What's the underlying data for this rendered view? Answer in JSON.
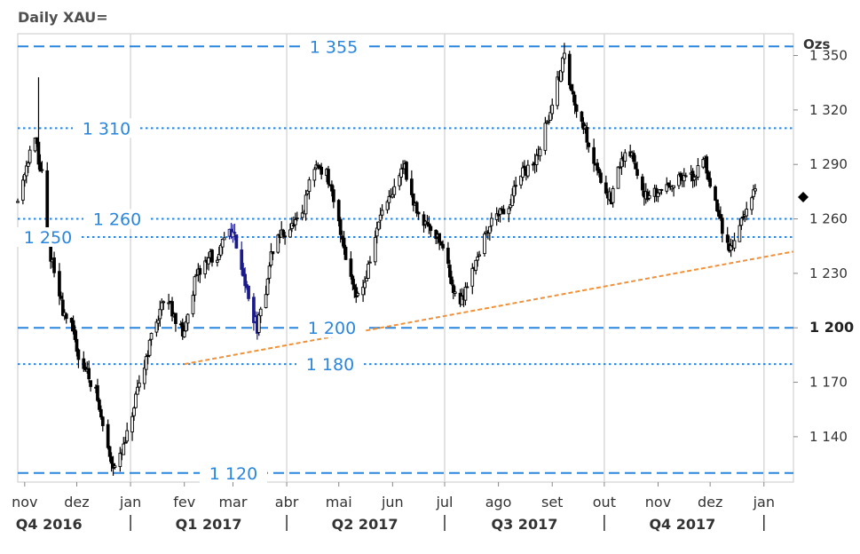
{
  "chart_data": {
    "type": "candlestick",
    "title": "Daily XAU=",
    "y_unit": "Ozs",
    "ylim": [
      1115,
      1362
    ],
    "y_ticks": [
      {
        "value": 1350,
        "label": "1 350"
      },
      {
        "value": 1320,
        "label": "1 320"
      },
      {
        "value": 1290,
        "label": "1 290"
      },
      {
        "value": 1260,
        "label": "1 260"
      },
      {
        "value": 1230,
        "label": "1 230"
      },
      {
        "value": 1200,
        "label": "1 200",
        "bold": true
      },
      {
        "value": 1170,
        "label": "1 170"
      },
      {
        "value": 1140,
        "label": "1 140"
      }
    ],
    "current_marker": {
      "value": 1272,
      "color": "#000000"
    },
    "x_range": [
      "2016-10-28",
      "2018-01-18"
    ],
    "x_months": [
      {
        "label": "nov",
        "date": "2016-11-01"
      },
      {
        "label": "dez",
        "date": "2016-12-01"
      },
      {
        "label": "jan",
        "date": "2017-01-01"
      },
      {
        "label": "fev",
        "date": "2017-02-01"
      },
      {
        "label": "mar",
        "date": "2017-03-01"
      },
      {
        "label": "abr",
        "date": "2017-04-01"
      },
      {
        "label": "mai",
        "date": "2017-05-01"
      },
      {
        "label": "jun",
        "date": "2017-06-01"
      },
      {
        "label": "jul",
        "date": "2017-07-01"
      },
      {
        "label": "ago",
        "date": "2017-08-01"
      },
      {
        "label": "set",
        "date": "2017-09-01"
      },
      {
        "label": "out",
        "date": "2017-10-01"
      },
      {
        "label": "nov",
        "date": "2017-11-01"
      },
      {
        "label": "dez",
        "date": "2017-12-01"
      },
      {
        "label": "jan",
        "date": "2018-01-01"
      }
    ],
    "x_quarters": [
      {
        "label": "Q4 2016",
        "center": "2016-11-15"
      },
      {
        "label": "Q1 2017",
        "center": "2017-02-15"
      },
      {
        "label": "Q2 2017",
        "center": "2017-05-16"
      },
      {
        "label": "Q3 2017",
        "center": "2017-08-16"
      },
      {
        "label": "Q4 2017",
        "center": "2017-11-15"
      }
    ],
    "quarter_separators": [
      "2017-01-01",
      "2017-04-01",
      "2017-07-01",
      "2017-10-01",
      "2018-01-01"
    ],
    "levels": [
      {
        "value": 1355,
        "label": "1 355",
        "style": "dashed"
      },
      {
        "value": 1310,
        "label": "1 310",
        "style": "dotted"
      },
      {
        "value": 1260,
        "label": "1 260",
        "style": "dotted"
      },
      {
        "value": 1250,
        "label": "1 250",
        "style": "dotted"
      },
      {
        "value": 1200,
        "label": "1 200",
        "style": "dashed"
      },
      {
        "value": 1180,
        "label": "1 180",
        "style": "dotted"
      },
      {
        "value": 1120,
        "label": "1 120",
        "style": "dashed"
      }
    ],
    "trendline": {
      "color": "#f0913a",
      "points": [
        [
          "2017-02-01",
          1180
        ],
        [
          "2018-01-18",
          1242
        ]
      ]
    },
    "price_path": [
      [
        "2016-10-28",
        1270
      ],
      [
        "2016-11-02",
        1290
      ],
      [
        "2016-11-06",
        1305
      ],
      [
        "2016-11-08",
        1300
      ],
      [
        "2016-11-09",
        1290
      ],
      [
        "2016-11-11",
        1285
      ],
      [
        "2016-11-14",
        1250
      ],
      [
        "2016-11-18",
        1230
      ],
      [
        "2016-11-23",
        1210
      ],
      [
        "2016-11-28",
        1200
      ],
      [
        "2016-12-02",
        1185
      ],
      [
        "2016-12-07",
        1175
      ],
      [
        "2016-12-12",
        1165
      ],
      [
        "2016-12-15",
        1150
      ],
      [
        "2016-12-20",
        1130
      ],
      [
        "2016-12-22",
        1125
      ],
      [
        "2016-12-26",
        1128
      ],
      [
        "2016-12-30",
        1140
      ],
      [
        "2017-01-04",
        1160
      ],
      [
        "2017-01-09",
        1180
      ],
      [
        "2017-01-13",
        1195
      ],
      [
        "2017-01-18",
        1210
      ],
      [
        "2017-01-23",
        1215
      ],
      [
        "2017-01-27",
        1205
      ],
      [
        "2017-02-01",
        1195
      ],
      [
        "2017-02-03",
        1210
      ],
      [
        "2017-02-07",
        1225
      ],
      [
        "2017-02-12",
        1235
      ],
      [
        "2017-02-16",
        1240
      ],
      [
        "2017-02-20",
        1235
      ],
      [
        "2017-02-24",
        1250
      ],
      [
        "2017-02-27",
        1255
      ],
      [
        "2017-03-02",
        1250
      ],
      [
        "2017-03-06",
        1235
      ],
      [
        "2017-03-10",
        1215
      ],
      [
        "2017-03-15",
        1200
      ],
      [
        "2017-03-19",
        1215
      ],
      [
        "2017-03-23",
        1240
      ],
      [
        "2017-03-27",
        1250
      ],
      [
        "2017-04-03",
        1255
      ],
      [
        "2017-04-10",
        1260
      ],
      [
        "2017-04-14",
        1280
      ],
      [
        "2017-04-18",
        1290
      ],
      [
        "2017-04-24",
        1285
      ],
      [
        "2017-04-28",
        1268
      ],
      [
        "2017-05-03",
        1250
      ],
      [
        "2017-05-07",
        1230
      ],
      [
        "2017-05-12",
        1218
      ],
      [
        "2017-05-16",
        1225
      ],
      [
        "2017-05-22",
        1250
      ],
      [
        "2017-05-26",
        1265
      ],
      [
        "2017-05-31",
        1270
      ],
      [
        "2017-06-05",
        1285
      ],
      [
        "2017-06-08",
        1290
      ],
      [
        "2017-06-12",
        1270
      ],
      [
        "2017-06-18",
        1260
      ],
      [
        "2017-06-24",
        1255
      ],
      [
        "2017-06-30",
        1245
      ],
      [
        "2017-07-05",
        1225
      ],
      [
        "2017-07-10",
        1212
      ],
      [
        "2017-07-14",
        1225
      ],
      [
        "2017-07-20",
        1240
      ],
      [
        "2017-07-25",
        1252
      ],
      [
        "2017-07-31",
        1265
      ],
      [
        "2017-08-05",
        1260
      ],
      [
        "2017-08-10",
        1275
      ],
      [
        "2017-08-15",
        1285
      ],
      [
        "2017-08-22",
        1290
      ],
      [
        "2017-08-28",
        1310
      ],
      [
        "2017-09-02",
        1325
      ],
      [
        "2017-09-05",
        1340
      ],
      [
        "2017-09-08",
        1350
      ],
      [
        "2017-09-12",
        1330
      ],
      [
        "2017-09-18",
        1315
      ],
      [
        "2017-09-24",
        1295
      ],
      [
        "2017-09-30",
        1280
      ],
      [
        "2017-10-05",
        1270
      ],
      [
        "2017-10-10",
        1290
      ],
      [
        "2017-10-15",
        1300
      ],
      [
        "2017-10-20",
        1285
      ],
      [
        "2017-10-26",
        1270
      ],
      [
        "2017-11-01",
        1275
      ],
      [
        "2017-11-08",
        1280
      ],
      [
        "2017-11-15",
        1282
      ],
      [
        "2017-11-22",
        1283
      ],
      [
        "2017-11-27",
        1295
      ],
      [
        "2017-12-01",
        1280
      ],
      [
        "2017-12-06",
        1262
      ],
      [
        "2017-12-10",
        1245
      ],
      [
        "2017-12-14",
        1245
      ],
      [
        "2017-12-18",
        1258
      ],
      [
        "2017-12-22",
        1265
      ],
      [
        "2017-12-27",
        1275
      ]
    ],
    "spikes": [
      {
        "date": "2016-11-09",
        "high": 1338
      },
      {
        "date": "2017-09-08",
        "high": 1357
      }
    ],
    "highlight_segment": {
      "from": "2017-02-27",
      "to": "2017-03-15",
      "color": "#1a1a8c"
    }
  }
}
